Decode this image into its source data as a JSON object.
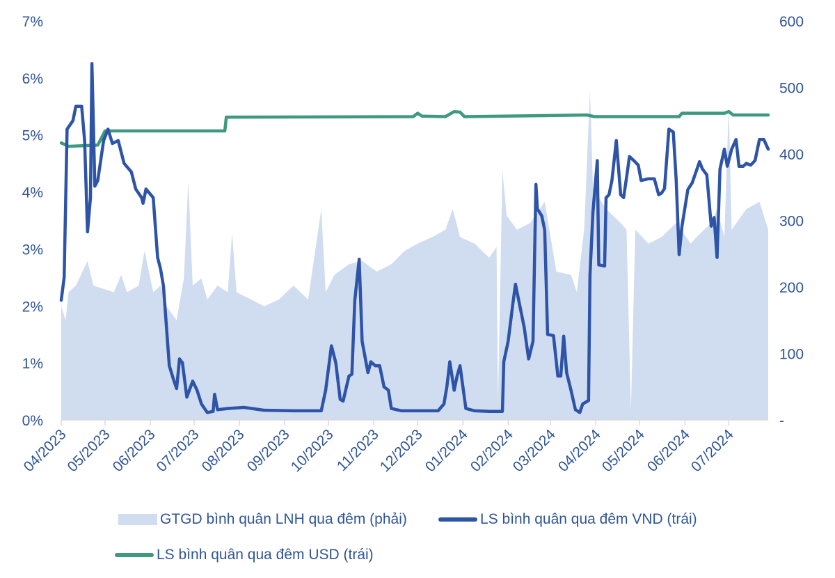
{
  "chart_data": {
    "type": "line",
    "title": "",
    "xlabel": "",
    "ylabel_left": "",
    "ylabel_right": "",
    "xlim": [
      "2023-04-01",
      "2024-07-28"
    ],
    "ylim_left": [
      0,
      7
    ],
    "ylim_right": [
      0,
      600
    ],
    "left_ticks": [
      "0%",
      "1%",
      "2%",
      "3%",
      "4%",
      "5%",
      "6%",
      "7%"
    ],
    "right_ticks": [
      "-",
      "100",
      "200",
      "300",
      "400",
      "500",
      "600"
    ],
    "x_ticks": [
      {
        "date": "2023-04-01",
        "label": "04/2023"
      },
      {
        "date": "2023-05-01",
        "label": "05/2023"
      },
      {
        "date": "2023-06-01",
        "label": "06/2023"
      },
      {
        "date": "2023-07-01",
        "label": "07/2023"
      },
      {
        "date": "2023-08-01",
        "label": "08/2023"
      },
      {
        "date": "2023-09-01",
        "label": "09/2023"
      },
      {
        "date": "2023-10-01",
        "label": "10/2023"
      },
      {
        "date": "2023-11-01",
        "label": "11/2023"
      },
      {
        "date": "2023-12-01",
        "label": "12/2023"
      },
      {
        "date": "2024-01-01",
        "label": "01/2024"
      },
      {
        "date": "2024-02-01",
        "label": "02/2024"
      },
      {
        "date": "2024-03-01",
        "label": "03/2024"
      },
      {
        "date": "2024-04-01",
        "label": "04/2024"
      },
      {
        "date": "2024-05-01",
        "label": "05/2024"
      },
      {
        "date": "2024-06-01",
        "label": "06/2024"
      },
      {
        "date": "2024-07-01",
        "label": "07/2024"
      }
    ],
    "grid": false,
    "legend_position": "bottom",
    "series": [
      {
        "name": "GTGD bình quân LNH qua đêm (phải)",
        "type": "area",
        "axis": "right",
        "color": "#D0DCF0",
        "points": [
          [
            "2023-04-01",
            171
          ],
          [
            "2023-04-04",
            150
          ],
          [
            "2023-04-06",
            192
          ],
          [
            "2023-04-11",
            202
          ],
          [
            "2023-04-19",
            239
          ],
          [
            "2023-04-23",
            202
          ],
          [
            "2023-05-07",
            192
          ],
          [
            "2023-05-12",
            218
          ],
          [
            "2023-05-16",
            192
          ],
          [
            "2023-05-24",
            202
          ],
          [
            "2023-05-28",
            254
          ],
          [
            "2023-06-03",
            192
          ],
          [
            "2023-06-08",
            202
          ],
          [
            "2023-06-12",
            171
          ],
          [
            "2023-06-19",
            150
          ],
          [
            "2023-06-24",
            213
          ],
          [
            "2023-06-27",
            359
          ],
          [
            "2023-06-30",
            202
          ],
          [
            "2023-07-06",
            213
          ],
          [
            "2023-07-10",
            181
          ],
          [
            "2023-07-17",
            202
          ],
          [
            "2023-07-24",
            192
          ],
          [
            "2023-07-27",
            281
          ],
          [
            "2023-07-30",
            192
          ],
          [
            "2023-08-09",
            181
          ],
          [
            "2023-08-18",
            171
          ],
          [
            "2023-08-28",
            181
          ],
          [
            "2023-09-07",
            202
          ],
          [
            "2023-09-17",
            181
          ],
          [
            "2023-09-26",
            317
          ],
          [
            "2023-09-29",
            192
          ],
          [
            "2023-10-05",
            218
          ],
          [
            "2023-10-15",
            234
          ],
          [
            "2023-10-24",
            239
          ],
          [
            "2023-11-03",
            223
          ],
          [
            "2023-11-13",
            234
          ],
          [
            "2023-11-22",
            254
          ],
          [
            "2023-12-01",
            265
          ],
          [
            "2023-12-11",
            275
          ],
          [
            "2023-12-20",
            286
          ],
          [
            "2023-12-25",
            317
          ],
          [
            "2023-12-30",
            275
          ],
          [
            "2024-01-09",
            265
          ],
          [
            "2024-01-19",
            244
          ],
          [
            "2024-01-24",
            260
          ],
          [
            "2024-01-25",
            24
          ],
          [
            "2024-01-28",
            375
          ],
          [
            "2024-01-31",
            307
          ],
          [
            "2024-02-07",
            286
          ],
          [
            "2024-02-16",
            296
          ],
          [
            "2024-02-26",
            328
          ],
          [
            "2024-03-05",
            223
          ],
          [
            "2024-03-15",
            218
          ],
          [
            "2024-03-19",
            192
          ],
          [
            "2024-03-24",
            286
          ],
          [
            "2024-03-28",
            495
          ],
          [
            "2024-03-30",
            349
          ],
          [
            "2024-04-08",
            317
          ],
          [
            "2024-04-18",
            296
          ],
          [
            "2024-04-22",
            286
          ],
          [
            "2024-04-25",
            14
          ],
          [
            "2024-04-28",
            286
          ],
          [
            "2024-05-07",
            265
          ],
          [
            "2024-05-16",
            275
          ],
          [
            "2024-05-26",
            296
          ],
          [
            "2024-06-05",
            265
          ],
          [
            "2024-06-09",
            275
          ],
          [
            "2024-06-19",
            296
          ],
          [
            "2024-06-23",
            317
          ],
          [
            "2024-06-28",
            275
          ],
          [
            "2024-07-01",
            474
          ],
          [
            "2024-07-03",
            286
          ],
          [
            "2024-07-13",
            317
          ],
          [
            "2024-07-22",
            328
          ],
          [
            "2024-07-28",
            286
          ]
        ]
      },
      {
        "name": "LS bình quân qua đêm VND (trái)",
        "type": "line",
        "axis": "left",
        "color": "#2E54A8",
        "points": [
          [
            "2023-04-01",
            2.1
          ],
          [
            "2023-04-03",
            2.5
          ],
          [
            "2023-04-05",
            5.1
          ],
          [
            "2023-04-09",
            5.25
          ],
          [
            "2023-04-11",
            5.5
          ],
          [
            "2023-04-15",
            5.5
          ],
          [
            "2023-04-17",
            4.9
          ],
          [
            "2023-04-19",
            3.3
          ],
          [
            "2023-04-21",
            3.9
          ],
          [
            "2023-04-22",
            6.25
          ],
          [
            "2023-04-24",
            4.1
          ],
          [
            "2023-04-26",
            4.2
          ],
          [
            "2023-04-30",
            4.9
          ],
          [
            "2023-05-03",
            5.1
          ],
          [
            "2023-05-06",
            4.85
          ],
          [
            "2023-05-10",
            4.9
          ],
          [
            "2023-05-14",
            4.5
          ],
          [
            "2023-05-19",
            4.35
          ],
          [
            "2023-05-22",
            4.05
          ],
          [
            "2023-05-26",
            3.9
          ],
          [
            "2023-05-27",
            3.8
          ],
          [
            "2023-05-29",
            4.05
          ],
          [
            "2023-06-03",
            3.9
          ],
          [
            "2023-06-06",
            2.85
          ],
          [
            "2023-06-08",
            2.65
          ],
          [
            "2023-06-10",
            2.35
          ],
          [
            "2023-06-14",
            0.95
          ],
          [
            "2023-06-17",
            0.7
          ],
          [
            "2023-06-19",
            0.55
          ],
          [
            "2023-06-21",
            1.07
          ],
          [
            "2023-06-23",
            1.0
          ],
          [
            "2023-06-26",
            0.4
          ],
          [
            "2023-06-30",
            0.68
          ],
          [
            "2023-07-03",
            0.52
          ],
          [
            "2023-07-06",
            0.28
          ],
          [
            "2023-07-10",
            0.13
          ],
          [
            "2023-07-14",
            0.15
          ],
          [
            "2023-07-15",
            0.45
          ],
          [
            "2023-07-17",
            0.18
          ],
          [
            "2023-07-24",
            0.2
          ],
          [
            "2023-08-04",
            0.22
          ],
          [
            "2023-08-18",
            0.17
          ],
          [
            "2023-09-07",
            0.16
          ],
          [
            "2023-09-26",
            0.16
          ],
          [
            "2023-09-29",
            0.52
          ],
          [
            "2023-10-03",
            1.3
          ],
          [
            "2023-10-06",
            1.0
          ],
          [
            "2023-10-09",
            0.36
          ],
          [
            "2023-10-11",
            0.33
          ],
          [
            "2023-10-15",
            0.77
          ],
          [
            "2023-10-17",
            0.8
          ],
          [
            "2023-10-19",
            2.1
          ],
          [
            "2023-10-22",
            2.82
          ],
          [
            "2023-10-24",
            1.38
          ],
          [
            "2023-10-28",
            0.83
          ],
          [
            "2023-10-30",
            1.02
          ],
          [
            "2023-11-02",
            0.95
          ],
          [
            "2023-11-05",
            0.95
          ],
          [
            "2023-11-08",
            0.58
          ],
          [
            "2023-11-11",
            0.52
          ],
          [
            "2023-11-13",
            0.2
          ],
          [
            "2023-11-20",
            0.16
          ],
          [
            "2023-12-01",
            0.16
          ],
          [
            "2023-12-15",
            0.16
          ],
          [
            "2023-12-19",
            0.28
          ],
          [
            "2023-12-21",
            0.58
          ],
          [
            "2023-12-23",
            1.02
          ],
          [
            "2023-12-26",
            0.52
          ],
          [
            "2023-12-28",
            0.77
          ],
          [
            "2023-12-30",
            0.95
          ],
          [
            "2024-01-03",
            0.2
          ],
          [
            "2024-01-09",
            0.16
          ],
          [
            "2024-01-19",
            0.15
          ],
          [
            "2024-01-28",
            0.15
          ],
          [
            "2024-01-29",
            1.02
          ],
          [
            "2024-02-01",
            1.38
          ],
          [
            "2024-02-04",
            2.0
          ],
          [
            "2024-02-06",
            2.38
          ],
          [
            "2024-02-09",
            2.0
          ],
          [
            "2024-02-12",
            1.62
          ],
          [
            "2024-02-15",
            1.07
          ],
          [
            "2024-02-18",
            1.38
          ],
          [
            "2024-02-20",
            4.13
          ],
          [
            "2024-02-21",
            3.7
          ],
          [
            "2024-02-24",
            3.58
          ],
          [
            "2024-02-26",
            3.33
          ],
          [
            "2024-02-28",
            1.5
          ],
          [
            "2024-03-03",
            1.48
          ],
          [
            "2024-03-06",
            0.77
          ],
          [
            "2024-03-08",
            0.77
          ],
          [
            "2024-03-10",
            1.47
          ],
          [
            "2024-03-12",
            0.83
          ],
          [
            "2024-03-15",
            0.52
          ],
          [
            "2024-03-18",
            0.18
          ],
          [
            "2024-03-21",
            0.13
          ],
          [
            "2024-03-23",
            0.28
          ],
          [
            "2024-03-27",
            0.34
          ],
          [
            "2024-03-28",
            2.55
          ],
          [
            "2024-03-30",
            3.64
          ],
          [
            "2024-04-02",
            4.55
          ],
          [
            "2024-04-03",
            2.72
          ],
          [
            "2024-04-07",
            2.7
          ],
          [
            "2024-04-08",
            3.9
          ],
          [
            "2024-04-10",
            3.95
          ],
          [
            "2024-04-12",
            4.2
          ],
          [
            "2024-04-15",
            4.9
          ],
          [
            "2024-04-18",
            3.95
          ],
          [
            "2024-04-20",
            3.9
          ],
          [
            "2024-04-22",
            4.25
          ],
          [
            "2024-04-24",
            4.62
          ],
          [
            "2024-04-27",
            4.55
          ],
          [
            "2024-04-30",
            4.47
          ],
          [
            "2024-05-02",
            4.2
          ],
          [
            "2024-05-07",
            4.23
          ],
          [
            "2024-05-11",
            4.23
          ],
          [
            "2024-05-14",
            3.95
          ],
          [
            "2024-05-16",
            3.98
          ],
          [
            "2024-05-18",
            4.06
          ],
          [
            "2024-05-21",
            5.1
          ],
          [
            "2024-05-24",
            5.05
          ],
          [
            "2024-05-26",
            4.2
          ],
          [
            "2024-05-28",
            2.9
          ],
          [
            "2024-05-30",
            3.4
          ],
          [
            "2024-06-03",
            4.04
          ],
          [
            "2024-06-06",
            4.16
          ],
          [
            "2024-06-11",
            4.53
          ],
          [
            "2024-06-13",
            4.4
          ],
          [
            "2024-06-16",
            4.3
          ],
          [
            "2024-06-19",
            3.4
          ],
          [
            "2024-06-21",
            3.55
          ],
          [
            "2024-06-23",
            2.85
          ],
          [
            "2024-06-25",
            4.4
          ],
          [
            "2024-06-28",
            4.75
          ],
          [
            "2024-06-30",
            4.45
          ],
          [
            "2024-07-03",
            4.75
          ],
          [
            "2024-07-06",
            4.92
          ],
          [
            "2024-07-08",
            4.45
          ],
          [
            "2024-07-11",
            4.45
          ],
          [
            "2024-07-13",
            4.5
          ],
          [
            "2024-07-16",
            4.47
          ],
          [
            "2024-07-19",
            4.55
          ],
          [
            "2024-07-22",
            4.92
          ],
          [
            "2024-07-25",
            4.92
          ],
          [
            "2024-07-28",
            4.75
          ]
        ]
      },
      {
        "name": "LS bình quân qua đêm USD (trái)",
        "type": "line",
        "axis": "left",
        "color": "#3E9A7F",
        "points": [
          [
            "2023-04-01",
            4.86
          ],
          [
            "2023-04-06",
            4.8
          ],
          [
            "2023-04-26",
            4.82
          ],
          [
            "2023-05-01",
            5.07
          ],
          [
            "2023-05-24",
            5.07
          ],
          [
            "2023-07-22",
            5.07
          ],
          [
            "2023-07-23",
            5.31
          ],
          [
            "2023-11-28",
            5.32
          ],
          [
            "2023-12-01",
            5.38
          ],
          [
            "2023-12-04",
            5.33
          ],
          [
            "2023-12-20",
            5.32
          ],
          [
            "2023-12-26",
            5.41
          ],
          [
            "2023-12-30",
            5.4
          ],
          [
            "2024-01-02",
            5.32
          ],
          [
            "2024-03-26",
            5.35
          ],
          [
            "2024-03-31",
            5.32
          ],
          [
            "2024-05-28",
            5.32
          ],
          [
            "2024-05-30",
            5.38
          ],
          [
            "2024-06-28",
            5.38
          ],
          [
            "2024-07-01",
            5.41
          ],
          [
            "2024-07-04",
            5.35
          ],
          [
            "2024-07-28",
            5.35
          ]
        ]
      }
    ]
  }
}
